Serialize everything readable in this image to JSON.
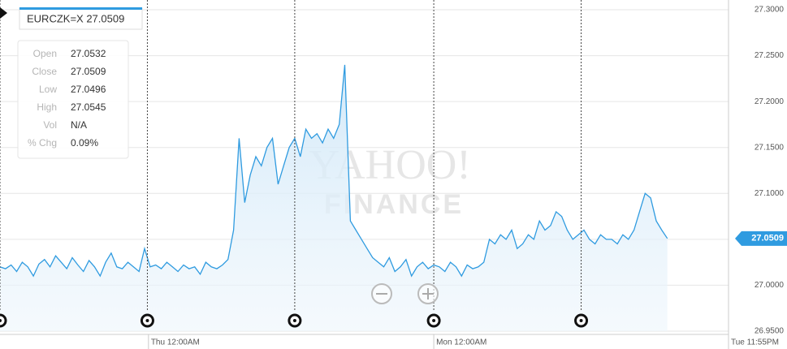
{
  "chart_data": {
    "type": "line",
    "title": "EURCZK=X 27.0509",
    "watermark": [
      "YAHOO!",
      "FINANCE"
    ],
    "info": [
      {
        "label": "Open",
        "value": "27.0532"
      },
      {
        "label": "Close",
        "value": "27.0509"
      },
      {
        "label": "Low",
        "value": "27.0496"
      },
      {
        "label": "High",
        "value": "27.0545"
      },
      {
        "label": "Vol",
        "value": "N/A"
      },
      {
        "label": "% Chg",
        "value": "0.09%"
      }
    ],
    "series": [
      {
        "name": "EURCZK=X",
        "color": "#2f9be0",
        "values": [
          27.02,
          27.018,
          27.022,
          27.015,
          27.025,
          27.02,
          27.01,
          27.023,
          27.028,
          27.02,
          27.032,
          27.025,
          27.018,
          27.03,
          27.022,
          27.015,
          27.027,
          27.02,
          27.01,
          27.025,
          27.035,
          27.02,
          27.018,
          27.025,
          27.02,
          27.015,
          27.04,
          27.02,
          27.022,
          27.018,
          27.025,
          27.02,
          27.015,
          27.022,
          27.018,
          27.02,
          27.012,
          27.025,
          27.02,
          27.018,
          27.022,
          27.028,
          27.06,
          27.16,
          27.09,
          27.12,
          27.14,
          27.13,
          27.15,
          27.16,
          27.11,
          27.13,
          27.15,
          27.16,
          27.14,
          27.17,
          27.16,
          27.165,
          27.155,
          27.17,
          27.16,
          27.175,
          27.24,
          27.07,
          27.06,
          27.05,
          27.04,
          27.03,
          27.025,
          27.02,
          27.03,
          27.015,
          27.02,
          27.028,
          27.01,
          27.02,
          27.025,
          27.018,
          27.022,
          27.02,
          27.015,
          27.025,
          27.02,
          27.01,
          27.022,
          27.018,
          27.02,
          27.025,
          27.05,
          27.045,
          27.055,
          27.05,
          27.06,
          27.04,
          27.045,
          27.055,
          27.05,
          27.07,
          27.06,
          27.065,
          27.08,
          27.075,
          27.06,
          27.05,
          27.055,
          27.06,
          27.05,
          27.045,
          27.055,
          27.05,
          27.05,
          27.045,
          27.055,
          27.05,
          27.06,
          27.08,
          27.1,
          27.095,
          27.07,
          27.06,
          27.0509
        ]
      }
    ],
    "xlim": [
      0,
      131
    ],
    "xticks": [
      {
        "value": 26.7,
        "label": "Thu 12:00AM"
      },
      {
        "value": 78,
        "label": "Mon 12:00AM"
      },
      {
        "value": 131,
        "label": "Tue 11:55PM"
      }
    ],
    "session_lines": [
      0,
      26.5,
      53,
      78,
      104.5
    ],
    "ylim": [
      26.95,
      27.3
    ],
    "yticks": [
      {
        "value": 26.95,
        "label": "26.9500"
      },
      {
        "value": 27.0,
        "label": "27.0000"
      },
      {
        "value": 27.05,
        "label": "27.0500"
      },
      {
        "value": 27.1,
        "label": "27.1000"
      },
      {
        "value": 27.15,
        "label": "27.1500"
      },
      {
        "value": 27.2,
        "label": "27.2000"
      },
      {
        "value": 27.25,
        "label": "27.2500"
      },
      {
        "value": 27.3,
        "label": "27.3000"
      }
    ],
    "grid": true
  }
}
